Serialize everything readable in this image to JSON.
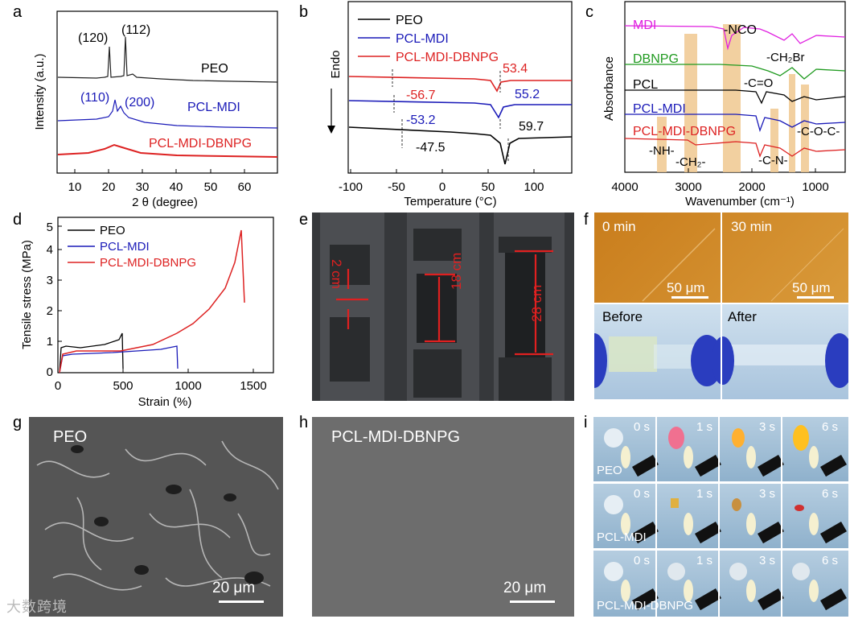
{
  "panels": {
    "a": {
      "letter": "a",
      "ylabel": "Intensity (a.u.)",
      "xlabel": "2 θ (degree)",
      "xticks": [
        "10",
        "20",
        "30",
        "40",
        "50",
        "60"
      ],
      "peaks": {
        "p120": "(120)",
        "p112": "(112)",
        "p110": "(110)",
        "p200": "(200)"
      },
      "curves": {
        "peo": "PEO",
        "pclmdi": "PCL-MDI",
        "dbnpg": "PCL-MDI-DBNPG"
      },
      "colors": {
        "peo": "#222222",
        "pclmdi": "#1a1ab8",
        "dbnpg": "#dd2222"
      }
    },
    "b": {
      "letter": "b",
      "ylabel_endo": "Endo",
      "xlabel": "Temperature (°C)",
      "xticks": [
        "-100",
        "-50",
        "0",
        "50",
        "100"
      ],
      "legend": [
        "PEO",
        "PCL-MDI",
        "PCL-MDI-DBNPG"
      ],
      "annot": {
        "r1": "53.4",
        "r2": "-56.7",
        "b1": "55.2",
        "b2": "-53.2",
        "k1": "59.7",
        "k2": "-47.5"
      }
    },
    "c": {
      "letter": "c",
      "ylabel": "Absorbance",
      "xlabel": "Wavenumber (cm⁻¹)",
      "xticks": [
        "4000",
        "3000",
        "2000",
        "1000"
      ],
      "curves": [
        "MDI",
        "DBNPG",
        "PCL",
        "PCL-MDI",
        "PCL-MDI-DBNPG"
      ],
      "annot": {
        "nco": "-NCO",
        "ch2br": "-CH₂Br",
        "co": "-C=O",
        "coc": "-C-O-C-",
        "nh": "-NH-",
        "ch2": "-CH₂-",
        "cn": "-C-N-"
      }
    },
    "d": {
      "letter": "d",
      "ylabel": "Tensile stress (MPa)",
      "xlabel": "Strain (%)",
      "xticks": [
        "0",
        "500",
        "1000",
        "1500"
      ],
      "yticks": [
        "0",
        "1",
        "2",
        "3",
        "4",
        "5"
      ],
      "legend": [
        "PEO",
        "PCL-MDI",
        "PCL-MDI-DBNPG"
      ]
    },
    "e": {
      "letter": "e",
      "labels": [
        "2 cm",
        "18 cm",
        "28 cm"
      ]
    },
    "f": {
      "letter": "f",
      "t0": "0 min",
      "t30": "30 min",
      "scale": "50 μm",
      "before": "Before",
      "after": "After"
    },
    "g": {
      "letter": "g",
      "name": "PEO",
      "scale": "20 μm"
    },
    "h": {
      "letter": "h",
      "name": "PCL-MDI-DBNPG",
      "scale": "20 μm"
    },
    "i": {
      "letter": "i",
      "times": [
        "0 s",
        "1 s",
        "3 s",
        "6 s"
      ],
      "rows": [
        "PEO",
        "PCL-MDI",
        "PCL-MDI-DBNPG"
      ]
    }
  },
  "watermark": "大数跨境"
}
